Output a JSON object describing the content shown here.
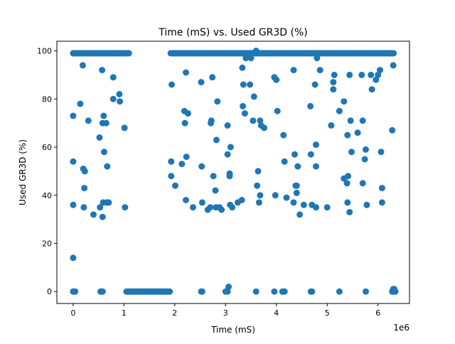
{
  "chart_data": {
    "type": "scatter",
    "title": "Time (mS) vs. Used GR3D (%)",
    "xlabel": "Time (mS)",
    "ylabel": "Used GR3D (%)",
    "x_offset_label": "1e6",
    "xlim": [
      -320000,
      6620000
    ],
    "ylim": [
      -4.95,
      104
    ],
    "x_ticks": [
      0,
      1000000,
      2000000,
      3000000,
      4000000,
      5000000,
      6000000
    ],
    "x_tick_labels": [
      "0",
      "1",
      "2",
      "3",
      "4",
      "5",
      "6"
    ],
    "y_ticks": [
      0,
      20,
      40,
      60,
      80,
      100
    ],
    "y_tick_labels": [
      "0",
      "20",
      "40",
      "60",
      "80",
      "100"
    ],
    "color": "#1f77b4",
    "marker": "circle",
    "grid": false,
    "series": [
      {
        "points": [
          [
            0,
            73
          ],
          [
            0,
            54
          ],
          [
            0,
            36
          ],
          [
            0,
            14
          ],
          [
            0,
            0
          ],
          [
            20000,
            0
          ],
          [
            40000,
            0
          ],
          [
            140000,
            78
          ],
          [
            190000,
            94
          ],
          [
            200000,
            51
          ],
          [
            230000,
            50
          ],
          [
            220000,
            43
          ],
          [
            210000,
            35
          ],
          [
            300000,
            71
          ],
          [
            400000,
            32
          ],
          [
            520000,
            64
          ],
          [
            530000,
            35
          ],
          [
            570000,
            92
          ],
          [
            580000,
            70
          ],
          [
            600000,
            73
          ],
          [
            610000,
            58
          ],
          [
            650000,
            70
          ],
          [
            670000,
            52
          ],
          [
            580000,
            31
          ],
          [
            590000,
            37
          ],
          [
            660000,
            37
          ],
          [
            700000,
            37
          ],
          [
            540000,
            0
          ],
          [
            560000,
            0
          ],
          [
            580000,
            0
          ],
          [
            790000,
            80
          ],
          [
            790000,
            89
          ],
          [
            910000,
            82
          ],
          [
            920000,
            79
          ],
          [
            1010000,
            68
          ],
          [
            1020000,
            35
          ],
          [
            1940000,
            86
          ],
          [
            1930000,
            54
          ],
          [
            1930000,
            48
          ],
          [
            2010000,
            44
          ],
          [
            2140000,
            53
          ],
          [
            2190000,
            75
          ],
          [
            2200000,
            70
          ],
          [
            2220000,
            91
          ],
          [
            2230000,
            56
          ],
          [
            2260000,
            74
          ],
          [
            2220000,
            38
          ],
          [
            2360000,
            35
          ],
          [
            2520000,
            87
          ],
          [
            2530000,
            52
          ],
          [
            2540000,
            37
          ],
          [
            2520000,
            0
          ],
          [
            2540000,
            0
          ],
          [
            2650000,
            34
          ],
          [
            2700000,
            35
          ],
          [
            2710000,
            70
          ],
          [
            2720000,
            71
          ],
          [
            2740000,
            89
          ],
          [
            2760000,
            48
          ],
          [
            2800000,
            42
          ],
          [
            2810000,
            35
          ],
          [
            2820000,
            63
          ],
          [
            2840000,
            79
          ],
          [
            2880000,
            35
          ],
          [
            2920000,
            34
          ],
          [
            3040000,
            69
          ],
          [
            3040000,
            57
          ],
          [
            3080000,
            49
          ],
          [
            3080000,
            48
          ],
          [
            3100000,
            60
          ],
          [
            3090000,
            36
          ],
          [
            3130000,
            35
          ],
          [
            3000000,
            0
          ],
          [
            3040000,
            0
          ],
          [
            3060000,
            2
          ],
          [
            3240000,
            37
          ],
          [
            3320000,
            38
          ],
          [
            3330000,
            93
          ],
          [
            3340000,
            77
          ],
          [
            3350000,
            86
          ],
          [
            3380000,
            74
          ],
          [
            3400000,
            97
          ],
          [
            3480000,
            86
          ],
          [
            3500000,
            97
          ],
          [
            3540000,
            71
          ],
          [
            3560000,
            81
          ],
          [
            3600000,
            100
          ],
          [
            3620000,
            44
          ],
          [
            3640000,
            50
          ],
          [
            3660000,
            37
          ],
          [
            3680000,
            71
          ],
          [
            3680000,
            40
          ],
          [
            3700000,
            69
          ],
          [
            3760000,
            68
          ],
          [
            3600000,
            0
          ],
          [
            3960000,
            89
          ],
          [
            4000000,
            88
          ],
          [
            4020000,
            75
          ],
          [
            3980000,
            40
          ],
          [
            3960000,
            0
          ],
          [
            4140000,
            65
          ],
          [
            4160000,
            54
          ],
          [
            4200000,
            39
          ],
          [
            4120000,
            0
          ],
          [
            4160000,
            0
          ],
          [
            4340000,
            92
          ],
          [
            4360000,
            57
          ],
          [
            4380000,
            44
          ],
          [
            4400000,
            44
          ],
          [
            4420000,
            52
          ],
          [
            4400000,
            41
          ],
          [
            4340000,
            37
          ],
          [
            4460000,
            32
          ],
          [
            4540000,
            36
          ],
          [
            4670000,
            77
          ],
          [
            4680000,
            57
          ],
          [
            4700000,
            36
          ],
          [
            4780000,
            35
          ],
          [
            4760000,
            86
          ],
          [
            4800000,
            97
          ],
          [
            4780000,
            61
          ],
          [
            4780000,
            52
          ],
          [
            4860000,
            92
          ],
          [
            4680000,
            0
          ],
          [
            4700000,
            0
          ],
          [
            5000000,
            35
          ],
          [
            5080000,
            69
          ],
          [
            5120000,
            84
          ],
          [
            5120000,
            87
          ],
          [
            5140000,
            90
          ],
          [
            5240000,
            75
          ],
          [
            5330000,
            79
          ],
          [
            5330000,
            47
          ],
          [
            5390000,
            45
          ],
          [
            5400000,
            65
          ],
          [
            5410000,
            48
          ],
          [
            5400000,
            37
          ],
          [
            5440000,
            33
          ],
          [
            5460000,
            71
          ],
          [
            5440000,
            90
          ],
          [
            5480000,
            58
          ],
          [
            5240000,
            0
          ],
          [
            5600000,
            66
          ],
          [
            5680000,
            90
          ],
          [
            5700000,
            71
          ],
          [
            5700000,
            45
          ],
          [
            5760000,
            59
          ],
          [
            5740000,
            55
          ],
          [
            5780000,
            36
          ],
          [
            5860000,
            90
          ],
          [
            5880000,
            84
          ],
          [
            5960000,
            88
          ],
          [
            6000000,
            90
          ],
          [
            6040000,
            92
          ],
          [
            6060000,
            58
          ],
          [
            6080000,
            43
          ],
          [
            6080000,
            37
          ],
          [
            5760000,
            0
          ],
          [
            6280000,
            67
          ],
          [
            6300000,
            94
          ],
          [
            6280000,
            0
          ],
          [
            6300000,
            1
          ],
          [
            6320000,
            1
          ],
          [
            6340000,
            0
          ],
          [
            6300000,
            0
          ]
        ],
        "runs": [
          {
            "x_start": 0,
            "x_end": 1100000,
            "y": 99
          },
          {
            "x_start": 1050000,
            "x_end": 1920000,
            "y": 0
          },
          {
            "x_start": 1920000,
            "x_end": 6320000,
            "y": 99
          }
        ]
      }
    ]
  }
}
